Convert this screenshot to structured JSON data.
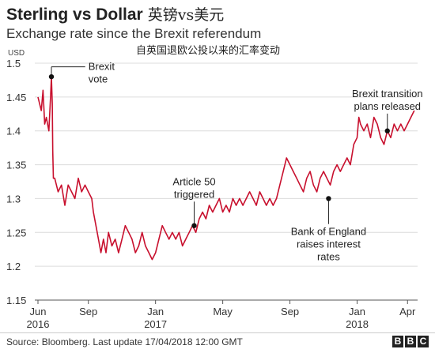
{
  "header": {
    "title": "Sterling vs Dollar",
    "title_cn": "英镑vs美元",
    "subtitle": "Exchange rate since the Brexit referendum",
    "subtitle_cn": "自英国退欧公投以来的汇率变动"
  },
  "footer": {
    "source": "Source: Bloomberg. Last update 17/04/2018 12:00 GMT",
    "logo": [
      "B",
      "B",
      "C"
    ]
  },
  "chart_data": {
    "type": "line",
    "title": "Sterling vs Dollar",
    "subtitle": "Exchange rate since the Brexit referendum",
    "ylabel": "USD",
    "ylim": [
      1.15,
      1.5
    ],
    "yticks": [
      1.15,
      1.2,
      1.25,
      1.3,
      1.35,
      1.4,
      1.45,
      1.5
    ],
    "ytick_labels": [
      "1.15",
      "1.2",
      "1.25",
      "1.3",
      "1.35",
      "1.4",
      "1.45",
      "1.5"
    ],
    "xticks": [
      {
        "month": 0,
        "label": "Jun",
        "year": "2016"
      },
      {
        "month": 3,
        "label": "Sep",
        "year": ""
      },
      {
        "month": 7,
        "label": "Jan",
        "year": "2017"
      },
      {
        "month": 11,
        "label": "May",
        "year": ""
      },
      {
        "month": 15,
        "label": "Sep",
        "year": ""
      },
      {
        "month": 19,
        "label": "Jan",
        "year": "2018"
      },
      {
        "month": 22,
        "label": "Apr",
        "year": ""
      }
    ],
    "grid": true,
    "line_color": "#c8102e",
    "series": [
      {
        "values": [
          [
            0.0,
            1.45
          ],
          [
            0.1,
            1.44
          ],
          [
            0.2,
            1.43
          ],
          [
            0.3,
            1.46
          ],
          [
            0.4,
            1.41
          ],
          [
            0.5,
            1.42
          ],
          [
            0.65,
            1.4
          ],
          [
            0.75,
            1.45
          ],
          [
            0.8,
            1.48
          ],
          [
            0.85,
            1.44
          ],
          [
            0.88,
            1.37
          ],
          [
            0.92,
            1.33
          ],
          [
            1.0,
            1.33
          ],
          [
            1.2,
            1.31
          ],
          [
            1.4,
            1.32
          ],
          [
            1.6,
            1.29
          ],
          [
            1.8,
            1.32
          ],
          [
            2.0,
            1.31
          ],
          [
            2.2,
            1.3
          ],
          [
            2.4,
            1.33
          ],
          [
            2.6,
            1.31
          ],
          [
            2.8,
            1.32
          ],
          [
            3.0,
            1.31
          ],
          [
            3.2,
            1.3
          ],
          [
            3.3,
            1.28
          ],
          [
            3.45,
            1.26
          ],
          [
            3.6,
            1.24
          ],
          [
            3.75,
            1.22
          ],
          [
            3.9,
            1.24
          ],
          [
            4.05,
            1.22
          ],
          [
            4.2,
            1.25
          ],
          [
            4.4,
            1.23
          ],
          [
            4.6,
            1.24
          ],
          [
            4.8,
            1.22
          ],
          [
            5.0,
            1.24
          ],
          [
            5.2,
            1.26
          ],
          [
            5.4,
            1.25
          ],
          [
            5.6,
            1.24
          ],
          [
            5.8,
            1.22
          ],
          [
            6.0,
            1.23
          ],
          [
            6.2,
            1.25
          ],
          [
            6.4,
            1.23
          ],
          [
            6.6,
            1.22
          ],
          [
            6.8,
            1.21
          ],
          [
            7.0,
            1.22
          ],
          [
            7.2,
            1.24
          ],
          [
            7.4,
            1.26
          ],
          [
            7.6,
            1.25
          ],
          [
            7.8,
            1.24
          ],
          [
            8.0,
            1.25
          ],
          [
            8.2,
            1.24
          ],
          [
            8.4,
            1.25
          ],
          [
            8.6,
            1.23
          ],
          [
            8.8,
            1.24
          ],
          [
            9.0,
            1.25
          ],
          [
            9.2,
            1.26
          ],
          [
            9.4,
            1.25
          ],
          [
            9.6,
            1.27
          ],
          [
            9.8,
            1.28
          ],
          [
            10.0,
            1.27
          ],
          [
            10.2,
            1.29
          ],
          [
            10.4,
            1.28
          ],
          [
            10.6,
            1.29
          ],
          [
            10.8,
            1.3
          ],
          [
            11.0,
            1.28
          ],
          [
            11.2,
            1.29
          ],
          [
            11.4,
            1.28
          ],
          [
            11.6,
            1.3
          ],
          [
            11.8,
            1.29
          ],
          [
            12.0,
            1.3
          ],
          [
            12.2,
            1.29
          ],
          [
            12.4,
            1.3
          ],
          [
            12.6,
            1.31
          ],
          [
            12.8,
            1.3
          ],
          [
            13.0,
            1.29
          ],
          [
            13.2,
            1.31
          ],
          [
            13.4,
            1.3
          ],
          [
            13.6,
            1.29
          ],
          [
            13.8,
            1.3
          ],
          [
            14.0,
            1.29
          ],
          [
            14.2,
            1.3
          ],
          [
            14.4,
            1.32
          ],
          [
            14.6,
            1.34
          ],
          [
            14.8,
            1.36
          ],
          [
            15.0,
            1.35
          ],
          [
            15.2,
            1.34
          ],
          [
            15.4,
            1.33
          ],
          [
            15.6,
            1.32
          ],
          [
            15.8,
            1.31
          ],
          [
            16.0,
            1.33
          ],
          [
            16.2,
            1.34
          ],
          [
            16.4,
            1.32
          ],
          [
            16.6,
            1.31
          ],
          [
            16.8,
            1.33
          ],
          [
            17.0,
            1.34
          ],
          [
            17.2,
            1.33
          ],
          [
            17.4,
            1.32
          ],
          [
            17.6,
            1.34
          ],
          [
            17.8,
            1.35
          ],
          [
            18.0,
            1.34
          ],
          [
            18.2,
            1.35
          ],
          [
            18.4,
            1.36
          ],
          [
            18.6,
            1.35
          ],
          [
            18.8,
            1.38
          ],
          [
            19.0,
            1.39
          ],
          [
            19.1,
            1.42
          ],
          [
            19.2,
            1.41
          ],
          [
            19.4,
            1.4
          ],
          [
            19.6,
            1.41
          ],
          [
            19.8,
            1.39
          ],
          [
            20.0,
            1.42
          ],
          [
            20.2,
            1.41
          ],
          [
            20.4,
            1.39
          ],
          [
            20.6,
            1.38
          ],
          [
            20.8,
            1.4
          ],
          [
            21.0,
            1.39
          ],
          [
            21.2,
            1.41
          ],
          [
            21.4,
            1.4
          ],
          [
            21.6,
            1.41
          ],
          [
            21.8,
            1.4
          ],
          [
            22.0,
            1.41
          ],
          [
            22.2,
            1.42
          ],
          [
            22.4,
            1.43
          ]
        ]
      }
    ],
    "annotations": [
      {
        "text_lines": [
          "Brexit",
          "vote"
        ],
        "x": 0.8,
        "y": 1.48,
        "label_x": 3.0,
        "label_y": 1.49,
        "anchor": "label-right"
      },
      {
        "text_lines": [
          "Article 50",
          "triggered"
        ],
        "x": 9.3,
        "y": 1.26,
        "label_x": 9.3,
        "label_y": 1.32,
        "anchor": "label-above"
      },
      {
        "text_lines": [
          "Bank of England",
          "raises interest",
          "rates"
        ],
        "x": 17.3,
        "y": 1.3,
        "label_x": 17.3,
        "label_y": 1.26,
        "anchor": "label-below"
      },
      {
        "text_lines": [
          "Brexit transition",
          "plans released"
        ],
        "x": 20.8,
        "y": 1.4,
        "label_x": 20.8,
        "label_y": 1.45,
        "anchor": "label-above"
      }
    ]
  }
}
